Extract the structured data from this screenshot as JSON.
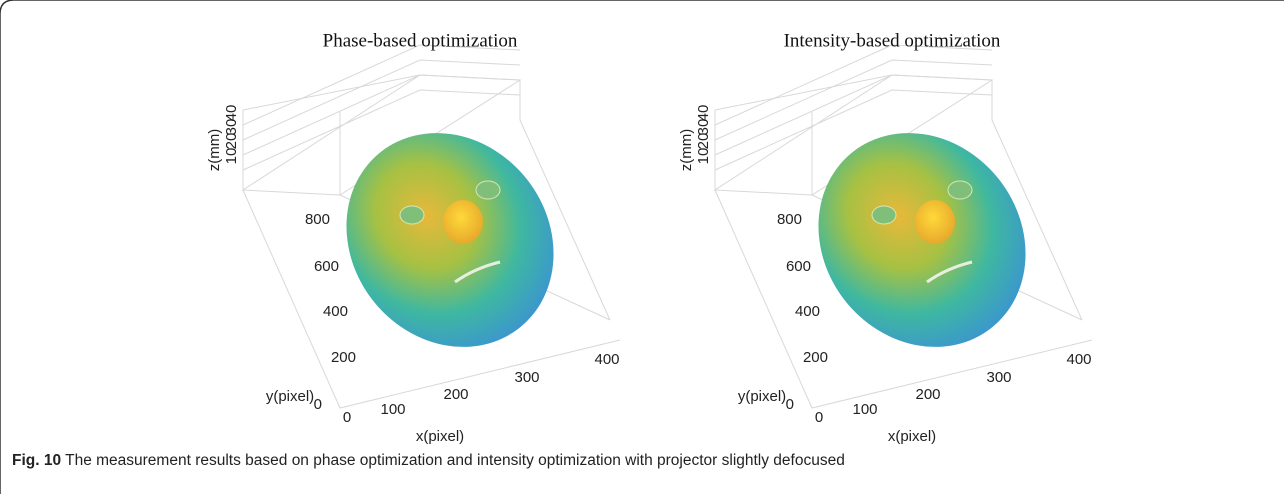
{
  "figure": {
    "panels": [
      {
        "title": "Phase-based optimization",
        "z_label": "z(mm)",
        "z_ticks": [
          "40",
          "30",
          "20",
          "10"
        ],
        "y_label": "y(pixel)",
        "y_ticks": [
          "800",
          "600",
          "400",
          "200",
          "0"
        ],
        "x_label": "x(pixel)",
        "x_ticks": [
          "0",
          "100",
          "200",
          "300",
          "400"
        ]
      },
      {
        "title": "Intensity-based optimization",
        "z_label": "z(mm)",
        "z_ticks": [
          "40",
          "30",
          "20",
          "10"
        ],
        "y_label": "y(pixel)",
        "y_ticks": [
          "800",
          "600",
          "400",
          "200",
          "0"
        ],
        "x_label": "x(pixel)",
        "x_ticks": [
          "0",
          "100",
          "200",
          "300",
          "400"
        ]
      }
    ],
    "caption": {
      "label": "Fig. 10",
      "text": "The measurement results based on phase optimization and intensity optimization with projector slightly defocused"
    }
  }
}
